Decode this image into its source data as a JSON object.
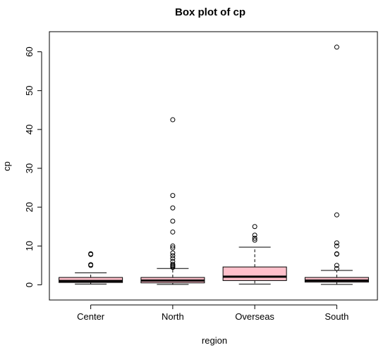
{
  "chart_data": {
    "type": "box",
    "title": "Box plot of cp",
    "xlabel": "region",
    "ylabel": "cp",
    "ylim": [
      -3,
      63
    ],
    "yticks": [
      0,
      10,
      20,
      30,
      40,
      50,
      60
    ],
    "grid": false,
    "box_color": "#ffc0cb",
    "categories": [
      "Center",
      "North",
      "Overseas",
      "South"
    ],
    "boxes": [
      {
        "name": "Center",
        "whisker_low": 0.2,
        "q1": 0.6,
        "median": 1.0,
        "q3": 1.9,
        "whisker_high": 3.1,
        "outliers": [
          5.0,
          5.2,
          7.8,
          8.0
        ]
      },
      {
        "name": "North",
        "whisker_low": 0.1,
        "q1": 0.5,
        "median": 1.1,
        "q3": 1.9,
        "whisker_high": 4.2,
        "outliers": [
          4.5,
          4.8,
          5.0,
          5.3,
          6.0,
          6.8,
          7.5,
          8.2,
          9.5,
          10.0,
          13.6,
          16.4,
          19.8,
          23.0,
          42.5
        ]
      },
      {
        "name": "Overseas",
        "whisker_low": 0.2,
        "q1": 1.1,
        "median": 2.1,
        "q3": 4.6,
        "whisker_high": 9.7,
        "outliers": [
          11.5,
          12.0,
          12.8,
          15.0
        ]
      },
      {
        "name": "South",
        "whisker_low": 0.1,
        "q1": 0.7,
        "median": 1.1,
        "q3": 1.9,
        "whisker_high": 3.7,
        "outliers": [
          4.2,
          5.0,
          7.9,
          8.0,
          10.0,
          10.8,
          18.0,
          61.2
        ]
      }
    ]
  }
}
